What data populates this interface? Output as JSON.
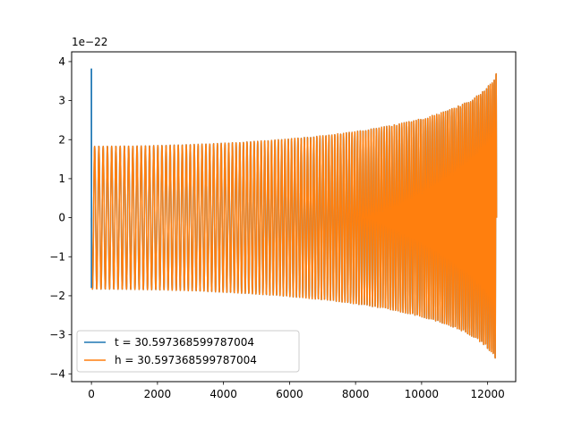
{
  "chart_data": {
    "type": "line",
    "title": "",
    "xlabel": "",
    "ylabel": "",
    "offset_text": "1e−22",
    "xlim": [
      -600,
      12850
    ],
    "ylim": [
      -4.2,
      4.25
    ],
    "xticks": [
      0,
      2000,
      4000,
      6000,
      8000,
      10000,
      12000
    ],
    "xtick_labels": [
      "0",
      "2000",
      "4000",
      "6000",
      "8000",
      "10000",
      "12000"
    ],
    "yticks": [
      4,
      3,
      2,
      1,
      0,
      -1,
      -2,
      -3,
      -4
    ],
    "ytick_labels": [
      "4",
      "3",
      "2",
      "1",
      "0",
      "−1",
      "−2",
      "−3",
      "−4"
    ],
    "grid": false,
    "legend_position": "lower-left",
    "x_range": [
      0,
      12270
    ],
    "samples": 12270,
    "series": [
      {
        "name": "t = 30.597368599787004",
        "color": "#1f77b4",
        "start_value": 3.82,
        "amplitude_start": 1.83,
        "amplitude_end": 3.9
      },
      {
        "name": "h = 30.597368599787004",
        "color": "#ff7f0e",
        "start_value": 0,
        "amplitude_start": 1.83,
        "amplitude_end": 3.9
      }
    ]
  }
}
